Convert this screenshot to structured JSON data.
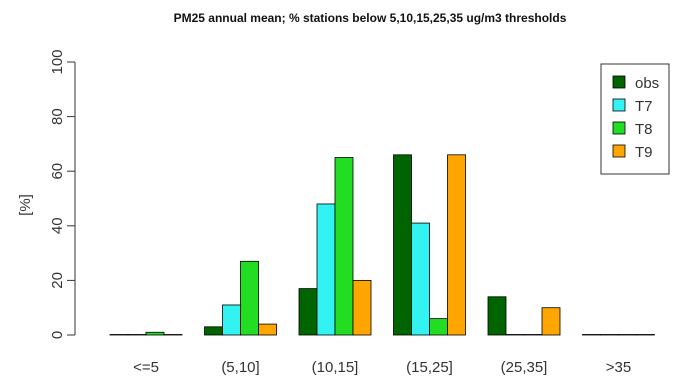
{
  "chart_data": {
    "type": "bar",
    "title": "PM25 annual mean; % stations below 5,10,15,25,35 ug/m3 thresholds",
    "xlabel": "",
    "ylabel": "[%]",
    "ylim": [
      0,
      100
    ],
    "yticks": [
      0,
      20,
      40,
      60,
      80,
      100
    ],
    "categories": [
      "<=5",
      "(5,10]",
      "(10,15]",
      "(15,25]",
      "(25,35]",
      ">35"
    ],
    "series": [
      {
        "name": "obs",
        "color": "#006400",
        "values": [
          0,
          3,
          17,
          66,
          14,
          0
        ]
      },
      {
        "name": "T7",
        "color": "#33f2f2",
        "values": [
          0,
          11,
          48,
          41,
          0,
          0
        ]
      },
      {
        "name": "T8",
        "color": "#22dd22",
        "values": [
          1,
          27,
          65,
          6,
          0,
          0
        ]
      },
      {
        "name": "T9",
        "color": "#ffa500",
        "values": [
          0,
          4,
          20,
          66,
          10,
          0
        ]
      }
    ],
    "legend_position": "top-right",
    "grid": false
  }
}
